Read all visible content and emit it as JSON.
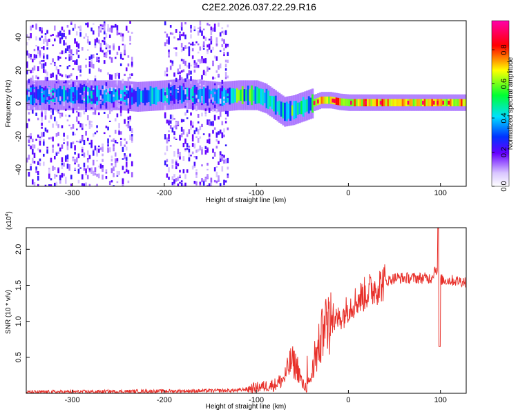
{
  "title": "C2E2.2026.037.22.29.R16",
  "chart_data": [
    {
      "type": "heatmap",
      "name": "spectrogram",
      "xlabel": "Height of straight line (km)",
      "ylabel": "Frequency (Hz)",
      "xlim": [
        -350,
        128
      ],
      "ylim": [
        -50,
        50
      ],
      "xticks": [
        -300,
        -200,
        -100,
        0,
        100
      ],
      "yticks": [
        -40,
        -20,
        0,
        20,
        40
      ],
      "colorbar": {
        "label": "Normalized spectral amplitude",
        "range": [
          0,
          0.97
        ],
        "ticks": [
          0.0,
          0.2,
          0.4,
          0.6,
          0.8
        ]
      },
      "ridge": {
        "x": [
          -290,
          -250,
          -230,
          -200,
          -180,
          -160,
          -140,
          -120,
          -100,
          -90,
          -80,
          -70,
          -60,
          -50,
          -40,
          -30,
          -20,
          -10,
          0,
          20,
          60,
          100,
          128
        ],
        "y": [
          5,
          5,
          4,
          5,
          6,
          5,
          4,
          5,
          5,
          3,
          -1,
          -5,
          -4,
          -2,
          0,
          2,
          2,
          1,
          0.5,
          0.5,
          0.5,
          0.5,
          0.5
        ]
      },
      "noise_field": {
        "x_range": [
          -350,
          -130
        ],
        "gap": [
          -235,
          -200
        ]
      }
    },
    {
      "type": "line",
      "name": "snr",
      "xlabel": "Height of straight line (km)",
      "ylabel": "SNR (10 * v/v)",
      "scale_label": "(x10",
      "scale_exp": "4",
      "xlim": [
        -350,
        128
      ],
      "ylim": [
        0,
        23000
      ],
      "xticks": [
        -300,
        -200,
        -100,
        0,
        100
      ],
      "yticks": [
        5000,
        10000,
        15000,
        20000
      ],
      "ytick_labels": [
        "0.5",
        "1.0",
        "1.5",
        "2.0"
      ],
      "color": "#e8302a",
      "series": {
        "x": [
          -350,
          -300,
          -250,
          -200,
          -150,
          -120,
          -100,
          -80,
          -70,
          -62,
          -55,
          -50,
          -45,
          -40,
          -35,
          -30,
          -25,
          -20,
          -15,
          -10,
          -5,
          0,
          10,
          20,
          30,
          40,
          50,
          60,
          70,
          80,
          90,
          95,
          100,
          105,
          110,
          120,
          128
        ],
        "y": [
          150,
          200,
          250,
          300,
          350,
          400,
          800,
          1200,
          2000,
          4500,
          3500,
          1200,
          800,
          2500,
          5000,
          7500,
          9000,
          9000,
          10000,
          10500,
          11000,
          12000,
          13000,
          14000,
          14800,
          15500,
          16000,
          16000,
          16000,
          16000,
          16000,
          17500,
          15800,
          15700,
          15700,
          15600,
          15500
        ]
      }
    }
  ]
}
